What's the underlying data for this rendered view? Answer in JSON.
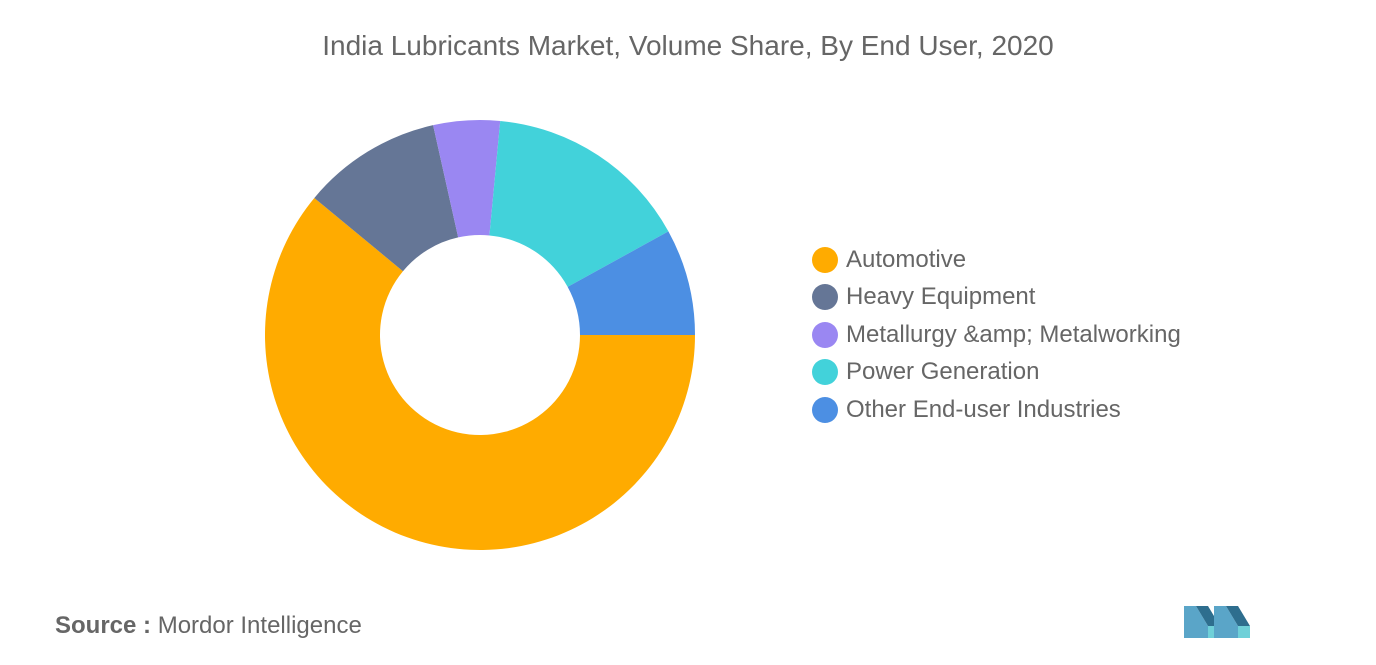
{
  "chart_data": {
    "type": "pie",
    "subtype": "donut",
    "title": "India Lubricants Market, Volume Share, By End User, 2020",
    "categories": [
      "Automotive",
      "Heavy Equipment",
      "Metallurgy &amp; Metalworking",
      "Power Generation",
      "Other End-user Industries"
    ],
    "values": [
      61,
      10.5,
      5,
      15.5,
      8
    ],
    "colors": [
      "#FFAB00",
      "#657696",
      "#9A87F2",
      "#42D2DA",
      "#4C8FE3"
    ],
    "legend_position": "right"
  },
  "source": {
    "prefix": "Source :",
    "text": "Mordor Intelligence"
  },
  "logo": {
    "icon": "mordor-intelligence-logo-icon",
    "colors": [
      "#5AA5C8",
      "#2E6E8E",
      "#6FD0D8"
    ]
  }
}
